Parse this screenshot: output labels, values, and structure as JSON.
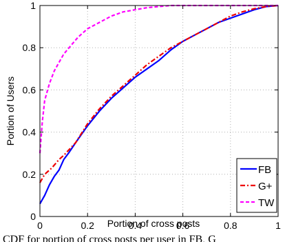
{
  "chart_data": {
    "type": "line",
    "xlabel": "Portion of cross posts",
    "ylabel": "Portion of Users",
    "xlim": [
      0,
      1
    ],
    "ylim": [
      0,
      1
    ],
    "x_ticks": [
      "0",
      "0.2",
      "0.4",
      "0.6",
      "0.8",
      "1"
    ],
    "y_ticks": [
      "0",
      "0.2",
      "0.4",
      "0.6",
      "0.8",
      "1"
    ],
    "grid": true,
    "legend_position": "bottom-right",
    "series": [
      {
        "name": "FB",
        "color": "#0000ff",
        "style": "solid",
        "points": [
          [
            0,
            0.06
          ],
          [
            0.02,
            0.1
          ],
          [
            0.04,
            0.15
          ],
          [
            0.06,
            0.19
          ],
          [
            0.08,
            0.22
          ],
          [
            0.1,
            0.27
          ],
          [
            0.12,
            0.3
          ],
          [
            0.15,
            0.35
          ],
          [
            0.2,
            0.43
          ],
          [
            0.25,
            0.5
          ],
          [
            0.3,
            0.56
          ],
          [
            0.35,
            0.61
          ],
          [
            0.4,
            0.66
          ],
          [
            0.45,
            0.7
          ],
          [
            0.5,
            0.74
          ],
          [
            0.55,
            0.79
          ],
          [
            0.6,
            0.83
          ],
          [
            0.65,
            0.86
          ],
          [
            0.7,
            0.89
          ],
          [
            0.75,
            0.92
          ],
          [
            0.8,
            0.94
          ],
          [
            0.85,
            0.96
          ],
          [
            0.9,
            0.98
          ],
          [
            0.95,
            0.995
          ],
          [
            1,
            1
          ]
        ]
      },
      {
        "name": "G+",
        "color": "#ee0000",
        "style": "dashdot",
        "points": [
          [
            0,
            0.16
          ],
          [
            0.02,
            0.2
          ],
          [
            0.05,
            0.23
          ],
          [
            0.08,
            0.27
          ],
          [
            0.1,
            0.29
          ],
          [
            0.15,
            0.35
          ],
          [
            0.2,
            0.44
          ],
          [
            0.25,
            0.51
          ],
          [
            0.3,
            0.57
          ],
          [
            0.35,
            0.62
          ],
          [
            0.4,
            0.67
          ],
          [
            0.45,
            0.72
          ],
          [
            0.5,
            0.76
          ],
          [
            0.55,
            0.8
          ],
          [
            0.6,
            0.83
          ],
          [
            0.65,
            0.86
          ],
          [
            0.7,
            0.89
          ],
          [
            0.75,
            0.92
          ],
          [
            0.8,
            0.95
          ],
          [
            0.85,
            0.97
          ],
          [
            0.9,
            0.985
          ],
          [
            0.95,
            0.995
          ],
          [
            1,
            1
          ]
        ]
      },
      {
        "name": "TW",
        "color": "#ff00ff",
        "style": "dashed",
        "points": [
          [
            0,
            0.3
          ],
          [
            0.01,
            0.45
          ],
          [
            0.02,
            0.55
          ],
          [
            0.04,
            0.63
          ],
          [
            0.06,
            0.69
          ],
          [
            0.08,
            0.73
          ],
          [
            0.1,
            0.77
          ],
          [
            0.13,
            0.81
          ],
          [
            0.16,
            0.85
          ],
          [
            0.2,
            0.89
          ],
          [
            0.25,
            0.92
          ],
          [
            0.3,
            0.95
          ],
          [
            0.35,
            0.97
          ],
          [
            0.4,
            0.98
          ],
          [
            0.45,
            0.99
          ],
          [
            0.5,
            0.995
          ],
          [
            0.55,
            1
          ],
          [
            0.6,
            1
          ],
          [
            0.7,
            1
          ],
          [
            0.8,
            1
          ],
          [
            0.9,
            1
          ],
          [
            1,
            1
          ]
        ]
      }
    ]
  },
  "caption": "CDF for portion of cross posts per user in FB, G"
}
